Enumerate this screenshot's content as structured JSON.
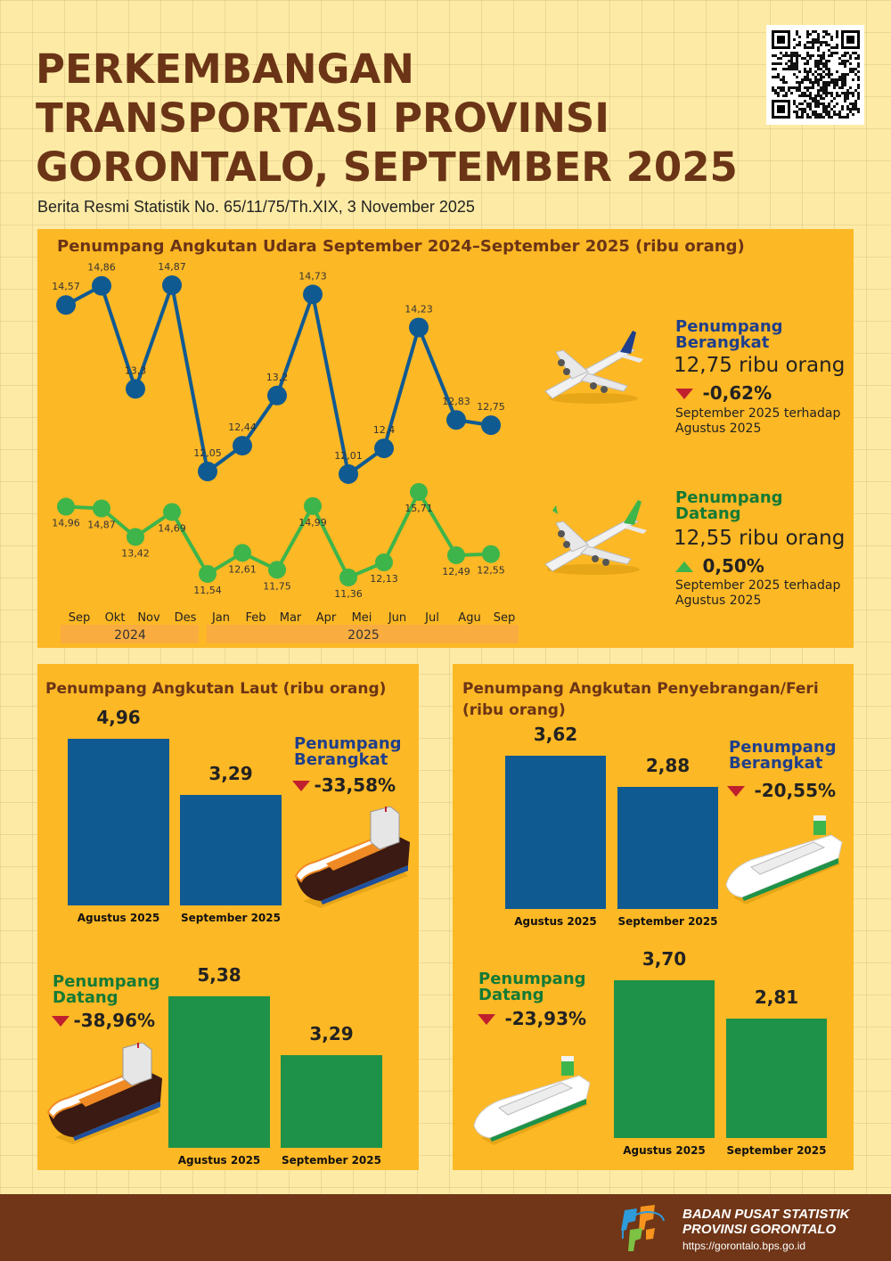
{
  "header": {
    "title_lines": [
      "PERKEMBANGAN",
      "TRANSPORTASI PROVINSI",
      "GORONTALO, SEPTEMBER 2025"
    ],
    "subtitle": "Berita Resmi Statistik No. 65/11/75/Th.XIX, 3 November 2025",
    "qr_icon": "qr-code-icon"
  },
  "colors": {
    "background": "#FDEBA5",
    "panel": "#FDB825",
    "title": "#6B3416",
    "blue": "#105A92",
    "green": "#3DB54A",
    "bar_green": "#1E9248",
    "down": "#C0202E",
    "footer": "#703617",
    "year_band": "#F9AC40"
  },
  "air": {
    "title": "Penumpang Angkutan Udara September 2024–September 2025 (ribu orang)",
    "departure": {
      "label_line1": "Penumpang",
      "label_line2": "Berangkat",
      "value": "12,75 ribu orang",
      "change": "-0,62%",
      "direction": "down",
      "note_line1": "September 2025 terhadap",
      "note_line2": "Agustus 2025",
      "icon": "airplane-blue-icon"
    },
    "arrival": {
      "label_line1": "Penumpang",
      "label_line2": "Datang",
      "value": "12,55 ribu orang",
      "change": "0,50%",
      "direction": "up",
      "note_line1": "September 2025 terhadap",
      "note_line2": "Agustus 2025",
      "icon": "airplane-green-icon"
    }
  },
  "sea": {
    "title": "Penumpang Angkutan Laut  (ribu orang)",
    "departure": {
      "label_line1": "Penumpang",
      "label_line2": "Berangkat",
      "change": "-33,58%",
      "direction": "down",
      "icon": "cargo-ship-icon"
    },
    "arrival": {
      "label_line1": "Penumpang",
      "label_line2": "Datang",
      "change": "-38,96%",
      "direction": "down",
      "icon": "cargo-ship-icon"
    }
  },
  "ferry": {
    "title_line1": "Penumpang Angkutan Penyebrangan/Feri",
    "title_line2": "(ribu orang)",
    "departure": {
      "label_line1": "Penumpang",
      "label_line2": "Berangkat",
      "change": "-20,55%",
      "direction": "down",
      "icon": "ferry-icon"
    },
    "arrival": {
      "label_line1": "Penumpang",
      "label_line2": "Datang",
      "change": "-23,93%",
      "direction": "down",
      "icon": "ferry-icon"
    }
  },
  "footer": {
    "org_line1": "BADAN PUSAT STATISTIK",
    "org_line2": "PROVINSI GORONTALO",
    "url": "https://gorontalo.bps.go.id",
    "logo_icon": "bps-logo-icon"
  },
  "chart_data": [
    {
      "type": "line",
      "title": "Penumpang Angkutan Udara September 2024–September 2025 (ribu orang)",
      "categories": [
        "Sep",
        "Okt",
        "Nov",
        "Des",
        "Jan",
        "Feb",
        "Mar",
        "Apr",
        "Mei",
        "Jun",
        "Jul",
        "Agu",
        "Sep"
      ],
      "year_groups": [
        {
          "label": "2024",
          "months": 4
        },
        {
          "label": "2025",
          "months": 9
        }
      ],
      "series": [
        {
          "name": "Penumpang Berangkat",
          "color": "#105A92",
          "values": [
            14.57,
            14.86,
            13.3,
            14.87,
            12.05,
            12.44,
            13.2,
            14.73,
            12.01,
            12.4,
            14.23,
            12.83,
            12.75
          ],
          "labels": [
            "14,57",
            "14,86",
            "13,3",
            "14,87",
            "12,05",
            "12,44",
            "13,2",
            "14,73",
            "12,01",
            "12,4",
            "14,23",
            "12,83",
            "12,75"
          ]
        },
        {
          "name": "Penumpang Datang",
          "color": "#3DB54A",
          "values": [
            14.96,
            14.87,
            13.42,
            14.69,
            11.54,
            12.61,
            11.75,
            14.99,
            11.36,
            12.13,
            15.71,
            12.49,
            12.55
          ],
          "labels": [
            "14,96",
            "14,87",
            "13,42",
            "14,69",
            "11,54",
            "12,61",
            "11,75",
            "14,99",
            "11,36",
            "12,13",
            "15,71",
            "12,49",
            "12,55"
          ]
        }
      ],
      "xlabel": "",
      "ylabel": ""
    },
    {
      "type": "bar",
      "title": "Penumpang Angkutan Laut - Berangkat (ribu orang)",
      "categories": [
        "Agustus 2025",
        "September 2025"
      ],
      "values": [
        4.96,
        3.29
      ],
      "labels": [
        "4,96",
        "3,29"
      ],
      "color": "#105A92",
      "ylim": [
        0,
        5.5
      ]
    },
    {
      "type": "bar",
      "title": "Penumpang Angkutan Laut - Datang (ribu orang)",
      "categories": [
        "Agustus 2025",
        "September 2025"
      ],
      "values": [
        5.38,
        3.29
      ],
      "labels": [
        "5,38",
        "3,29"
      ],
      "color": "#1E9248",
      "ylim": [
        0,
        5.5
      ]
    },
    {
      "type": "bar",
      "title": "Penumpang Angkutan Penyebrangan/Feri - Berangkat (ribu orang)",
      "categories": [
        "Agustus 2025",
        "September 2025"
      ],
      "values": [
        3.62,
        2.88
      ],
      "labels": [
        "3,62",
        "2,88"
      ],
      "color": "#105A92",
      "ylim": [
        0,
        3.8
      ]
    },
    {
      "type": "bar",
      "title": "Penumpang Angkutan Penyebrangan/Feri - Datang (ribu orang)",
      "categories": [
        "Agustus 2025",
        "September 2025"
      ],
      "values": [
        3.7,
        2.81
      ],
      "labels": [
        "3,70",
        "2,81"
      ],
      "color": "#1E9248",
      "ylim": [
        0,
        3.8
      ]
    }
  ]
}
